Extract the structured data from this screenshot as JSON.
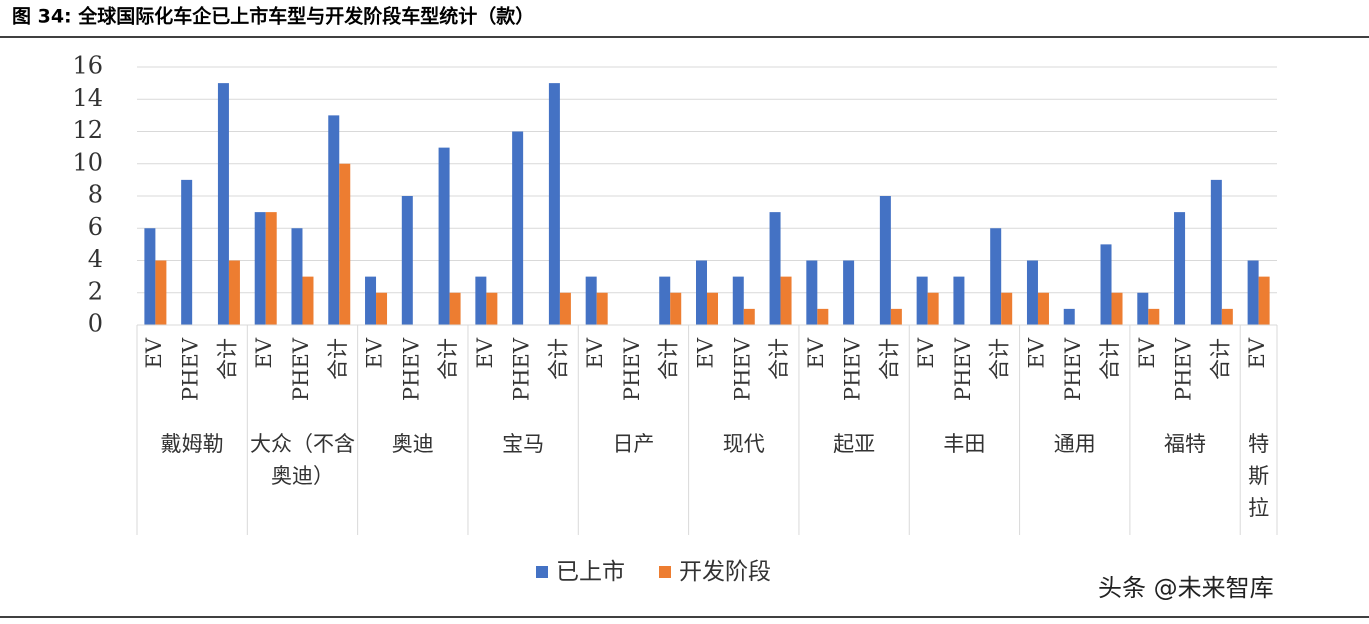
{
  "chart_data": {
    "type": "bar",
    "title": "图 34: 全球国际化车企已上市车型与开发阶段车型统计（款）",
    "watermark": "头条 @未来智库",
    "groups": [
      {
        "name": "戴姆勒",
        "categories": [
          "EV",
          "PHEV",
          "合计"
        ]
      },
      {
        "name": "大众（不含奥迪）",
        "categories": [
          "EV",
          "PHEV",
          "合计"
        ]
      },
      {
        "name": "奥迪",
        "categories": [
          "EV",
          "PHEV",
          "合计"
        ]
      },
      {
        "name": "宝马",
        "categories": [
          "EV",
          "PHEV",
          "合计"
        ]
      },
      {
        "name": "日产",
        "categories": [
          "EV",
          "PHEV",
          "合计"
        ]
      },
      {
        "name": "现代",
        "categories": [
          "EV",
          "PHEV",
          "合计"
        ]
      },
      {
        "name": "起亚",
        "categories": [
          "EV",
          "PHEV",
          "合计"
        ]
      },
      {
        "name": "丰田",
        "categories": [
          "EV",
          "PHEV",
          "合计"
        ]
      },
      {
        "name": "通用",
        "categories": [
          "EV",
          "PHEV",
          "合计"
        ]
      },
      {
        "name": "福特",
        "categories": [
          "EV",
          "PHEV",
          "合计"
        ]
      },
      {
        "name": "特斯拉",
        "categories": [
          "EV"
        ]
      }
    ],
    "series": [
      {
        "name": "已上市",
        "color": "#4472c4",
        "values": [
          6,
          9,
          15,
          7,
          6,
          13,
          3,
          8,
          11,
          3,
          12,
          15,
          3,
          null,
          3,
          4,
          3,
          7,
          4,
          4,
          8,
          3,
          3,
          6,
          4,
          1,
          5,
          2,
          7,
          9,
          4
        ]
      },
      {
        "name": "开发阶段",
        "color": "#ed7d31",
        "values": [
          4,
          0,
          4,
          7,
          3,
          10,
          2,
          0,
          2,
          2,
          0,
          2,
          2,
          null,
          2,
          2,
          1,
          3,
          1,
          0,
          1,
          2,
          0,
          2,
          2,
          0,
          2,
          1,
          0,
          1,
          3
        ]
      }
    ],
    "ylim": [
      0,
      16
    ],
    "yticks": [
      0,
      2,
      4,
      6,
      8,
      10,
      12,
      14,
      16
    ],
    "grid": true,
    "legend": "bottom"
  }
}
